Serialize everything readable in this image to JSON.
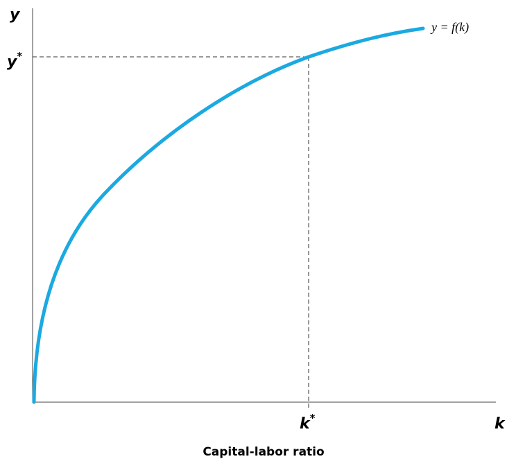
{
  "axes": {
    "y_label": "y",
    "x_label": "k",
    "y_star": {
      "base": "y",
      "sup": "*"
    },
    "k_star": {
      "base": "k",
      "sup": "*"
    },
    "x_title": "Capital-labor ratio"
  },
  "curve": {
    "label": "y = f(k)"
  }
}
